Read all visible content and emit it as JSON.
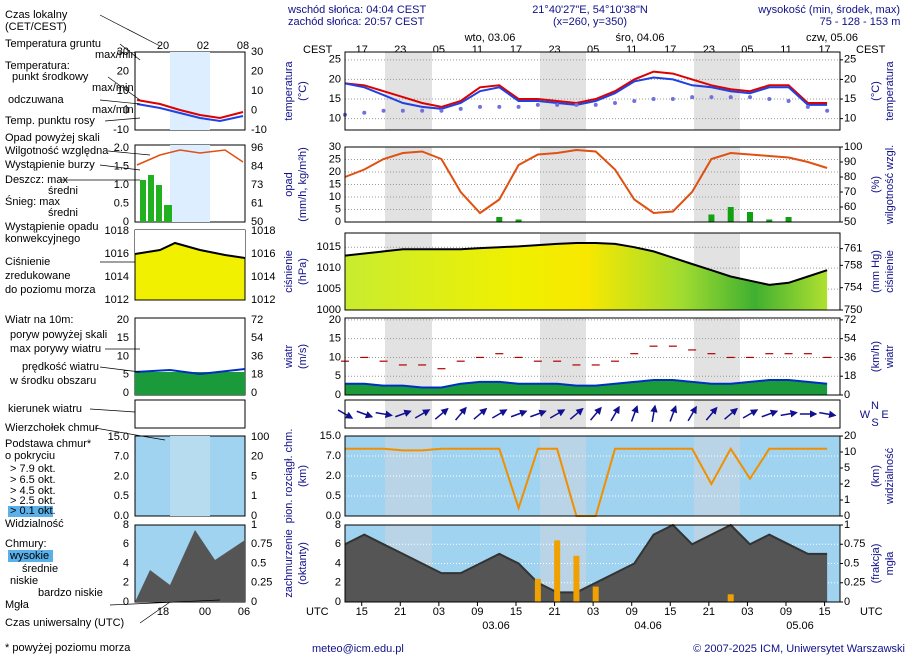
{
  "header": {
    "sunrise": "wschód słońca: 04:04 CEST",
    "sunset": "zachód słońca: 20:57 CEST",
    "coords": "21°40'27\"E, 54°10'38\"N",
    "grid": "(x=260,  y=350)",
    "elevation_title": "wysokość (min, środek, max)",
    "elevation": "75 - 128 - 153 m",
    "cest": "CEST",
    "utc": "UTC",
    "days_top": [
      "wto, 03.06",
      "śro, 04.06",
      "czw, 05.06"
    ],
    "days_bottom": [
      "03.06",
      "04.06",
      "05.06"
    ],
    "email": "meteo@icm.edu.pl",
    "copyright": "© 2007-2025 ICM, Uniwersytet Warszawski"
  },
  "time": {
    "xlim": [
      0,
      77
    ],
    "ticks": [
      {
        "value": 2.6,
        "label": "17"
      },
      {
        "value": 8.6,
        "label": "23"
      },
      {
        "value": 14.6,
        "label": "05"
      },
      {
        "value": 20.6,
        "label": "11"
      },
      {
        "value": 26.6,
        "label": "17"
      },
      {
        "value": 32.6,
        "label": "23"
      },
      {
        "value": 38.6,
        "label": "05"
      },
      {
        "value": 44.6,
        "label": "11"
      },
      {
        "value": 50.6,
        "label": "17"
      },
      {
        "value": 56.6,
        "label": "23"
      },
      {
        "value": 62.6,
        "label": "05"
      },
      {
        "value": 68.6,
        "label": "11"
      },
      {
        "value": 74.6,
        "label": "17"
      }
    ],
    "utc_ticks": [
      {
        "value": 2.6,
        "label": "15"
      },
      {
        "value": 8.6,
        "label": "21"
      },
      {
        "value": 14.6,
        "label": "03"
      },
      {
        "value": 20.6,
        "label": "09"
      },
      {
        "value": 26.6,
        "label": "15"
      },
      {
        "value": 32.6,
        "label": "21"
      },
      {
        "value": 38.6,
        "label": "03"
      },
      {
        "value": 44.6,
        "label": "09"
      },
      {
        "value": 50.6,
        "label": "15"
      },
      {
        "value": 56.6,
        "label": "21"
      },
      {
        "value": 62.6,
        "label": "03"
      },
      {
        "value": 68.6,
        "label": "09"
      },
      {
        "value": 74.6,
        "label": "15"
      }
    ]
  },
  "legend": {
    "local_time": "Czas lokalny",
    "local_zone": "(CET/CEST)",
    "ground_temp": "Temperatura gruntu",
    "ground_maxmin": "max/min",
    "temperature": "Temperatura:",
    "mid_maxmin": "max/min",
    "app_maxmin": "max/min",
    "precip_over": "Opad powyżej skali",
    "storm": "Wystąpienie burzy",
    "rain": "Deszcz: max",
    "snow": "Śnieg: max",
    "snow_mean": "średni",
    "convective": "Wystąpienie opadu",
    "convective2": "konwekcyjnego",
    "pressure2": "zredukowane",
    "pressure3": "do poziomu morza",
    "wind": "Wiatr na 10m:",
    "gust_over": "poryw powyżej skali",
    "wind_center": "w środku obszaru",
    "wind_dir": "kierunek wiatru",
    "cloud_top": "Wierzchołek chmur",
    "cloud_base": "Podstawa chmur*",
    "cover": "o pokryciu",
    "okt": [
      "> 7.9 okt.",
      "> 6.5 okt.",
      "> 4.5 okt.",
      "> 2.5 okt.",
      "> 0.1 okt."
    ],
    "clouds": "Chmury:",
    "high": "wysokie",
    "mid": "średnie",
    "very_low": "bardzo niskie",
    "utc": "Czas uniwersalny (UTC)",
    "footnote": "* powyżej poziomu morza",
    "top_ticks": [
      "20",
      "02",
      "08"
    ],
    "bottom_ticks": [
      18,
      "00",
      "06"
    ],
    "ticks": {
      "temp": [
        30,
        20,
        10,
        0,
        -10
      ],
      "precip": [
        "2.0",
        "1.5",
        "1.0",
        "0.5",
        0
      ],
      "hum": [
        96,
        84,
        73,
        61,
        50
      ],
      "pres": [
        1018,
        1016,
        1014,
        1012
      ],
      "wind": [
        20,
        15,
        10,
        5,
        0
      ],
      "windk": [
        72,
        54,
        36,
        18,
        0
      ],
      "base": [
        "15.0",
        "7.0",
        "2.0",
        "0.5",
        "0.0"
      ],
      "vis": [
        100,
        20,
        5,
        1,
        0
      ],
      "cover": [
        8,
        6,
        4,
        2,
        0
      ],
      "fog": [
        1,
        0.75,
        0.5,
        0.25,
        0
      ]
    }
  },
  "chart_data": [
    {
      "type": "line",
      "ylabel": "temperatura",
      "yunit": "(°C)",
      "y2label": "temperatura",
      "y2unit": "(°C)",
      "ylim": [
        7.1,
        27
      ],
      "yticks": [
        10,
        15,
        20,
        25
      ],
      "y2lim": [
        7.1,
        27
      ],
      "y2ticks": [
        10,
        15,
        20,
        25
      ],
      "grid": true,
      "x": [
        0,
        3,
        6,
        9,
        12,
        15,
        18,
        21,
        24,
        27,
        30,
        33,
        36,
        39,
        42,
        45,
        48,
        51,
        54,
        57,
        60,
        63,
        66,
        69,
        72,
        75
      ],
      "series": [
        {
          "name": "punkt środkowy",
          "color": "#dd0000",
          "kind": "line",
          "values": [
            19,
            18.5,
            17,
            15.5,
            14,
            13,
            14.5,
            18,
            18.5,
            15,
            15,
            14.5,
            14,
            15,
            17,
            20,
            22,
            21.5,
            20,
            18.5,
            17.5,
            17,
            18.5,
            18.5,
            14,
            14
          ]
        },
        {
          "name": "odczuwana",
          "color": "#2040e0",
          "kind": "line",
          "values": [
            19,
            18,
            16,
            14,
            13,
            12.5,
            14,
            17,
            18,
            14.5,
            14.5,
            14,
            13.5,
            14.5,
            16.5,
            19.5,
            20.5,
            20,
            18.5,
            18,
            17,
            16.5,
            18,
            18,
            13.5,
            13.5
          ]
        },
        {
          "name": "Temp. punktu rosy",
          "color": "#7070e0",
          "kind": "dots",
          "values": [
            11,
            11.5,
            12,
            12,
            12,
            12,
            12.5,
            13,
            13,
            13,
            13.5,
            13.5,
            13.5,
            13.5,
            14,
            14.5,
            15,
            15,
            15.5,
            15.5,
            15.5,
            15.5,
            15,
            14.5,
            13,
            12
          ]
        }
      ]
    },
    {
      "type": "bar",
      "ylabel": "opad",
      "yunit": "(mm/h, kg/m²h)",
      "y2label": "wilgotność wzgl.",
      "y2unit": "(%)",
      "ylim": [
        0,
        30
      ],
      "yticks": [
        0,
        5,
        10,
        15,
        20,
        25,
        30
      ],
      "y2lim": [
        50,
        100
      ],
      "y2ticks": [
        50,
        60,
        70,
        80,
        90,
        100
      ],
      "grid": true,
      "x": [
        0,
        3,
        6,
        9,
        12,
        15,
        18,
        21,
        24,
        27,
        30,
        33,
        36,
        39,
        42,
        45,
        48,
        51,
        54,
        57,
        60,
        63,
        66,
        69,
        72,
        75
      ],
      "series": [
        {
          "name": "średni",
          "color": "#10a010",
          "kind": "bar",
          "values": [
            0,
            0,
            0,
            0,
            0,
            0,
            0,
            0,
            2,
            1,
            0,
            0,
            0,
            0,
            0,
            0,
            0,
            0,
            0,
            3,
            6,
            4,
            1,
            2,
            0,
            0
          ]
        },
        {
          "name": "Wilgotność względna",
          "color": "#e05010",
          "kind": "line",
          "axis": "y2",
          "values": [
            80,
            85,
            92,
            96,
            97,
            92,
            70,
            56,
            65,
            88,
            95,
            96,
            98,
            97,
            85,
            65,
            56,
            57,
            70,
            92,
            96,
            95,
            94,
            93,
            90,
            86
          ]
        }
      ]
    },
    {
      "type": "area",
      "ylabel": "ciśnienie",
      "yunit": "(hPa)",
      "y2label": "ciśnienie",
      "y2unit": "(mm Hg)",
      "ylim": [
        1000,
        1018.4
      ],
      "yticks": [
        1000,
        1005,
        1010,
        1015
      ],
      "y2lim": [
        750,
        763.8
      ],
      "y2ticks": [
        750,
        754,
        758,
        761
      ],
      "grid": true,
      "x": [
        0,
        3,
        6,
        9,
        12,
        15,
        18,
        21,
        24,
        27,
        30,
        33,
        36,
        39,
        42,
        45,
        48,
        51,
        54,
        57,
        60,
        63,
        66,
        69,
        72,
        75
      ],
      "series": [
        {
          "name": "Ciśnienie",
          "color": "#000000",
          "kind": "area",
          "fill": "url(#presgrad)",
          "values": [
            1013,
            1013.5,
            1014,
            1014.5,
            1014.5,
            1014.5,
            1014.5,
            1014.8,
            1015,
            1015.2,
            1015.5,
            1015.8,
            1016,
            1016,
            1015.8,
            1015,
            1014,
            1012.5,
            1011,
            1009.5,
            1008,
            1007,
            1006,
            1006.5,
            1008,
            1009.5
          ]
        }
      ]
    },
    {
      "type": "area",
      "ylabel": "wiatr",
      "yunit": "(m/s)",
      "y2label": "wiatr",
      "y2unit": "(km/h)",
      "ylim": [
        0,
        20.5
      ],
      "yticks": [
        0,
        5,
        10,
        15,
        20
      ],
      "y2lim": [
        0,
        73.8
      ],
      "y2ticks": [
        0,
        18,
        36,
        54,
        72
      ],
      "grid": true,
      "x": [
        0,
        3,
        6,
        9,
        12,
        15,
        18,
        21,
        24,
        27,
        30,
        33,
        36,
        39,
        42,
        45,
        48,
        51,
        54,
        57,
        60,
        63,
        66,
        69,
        72,
        75
      ],
      "series": [
        {
          "name": "prędkość wiatru",
          "color": "#0030c0",
          "kind": "area",
          "fill": "#1a9a3a",
          "values": [
            3,
            3,
            2.5,
            2.5,
            2,
            2,
            3,
            3.5,
            3.5,
            3,
            3,
            3,
            2.5,
            2.5,
            3,
            3.5,
            4,
            4,
            3.5,
            3,
            3,
            3.5,
            4,
            4,
            3.5,
            3
          ]
        },
        {
          "name": "max porywy wiatru",
          "color": "#b00000",
          "kind": "dash",
          "values": [
            9,
            10,
            9,
            8,
            8,
            7,
            9,
            10,
            11,
            10,
            9,
            9,
            8,
            8,
            9,
            11,
            13,
            13,
            12,
            11,
            10,
            10,
            11,
            11,
            11,
            10
          ]
        }
      ]
    },
    {
      "type": "arrows",
      "color": "#101090",
      "compass": [
        "W",
        "N",
        "S",
        "E"
      ],
      "x": [
        0,
        3,
        6,
        9,
        12,
        15,
        18,
        21,
        24,
        27,
        30,
        33,
        36,
        39,
        42,
        45,
        48,
        51,
        54,
        57,
        60,
        63,
        66,
        69,
        72,
        75
      ],
      "values": [
        300,
        290,
        280,
        250,
        240,
        230,
        220,
        230,
        240,
        250,
        250,
        240,
        230,
        220,
        210,
        200,
        190,
        200,
        210,
        220,
        230,
        240,
        250,
        260,
        270,
        280
      ]
    },
    {
      "type": "line",
      "scale": "ticks",
      "ylabel": "pion. rozciągł. chm.",
      "yunit": "(km)",
      "y2label": "widzialność",
      "y2unit": "(km)",
      "ylim": [
        0,
        15
      ],
      "yticks": [
        {
          "value": 0,
          "label": "0.0"
        },
        0.5,
        {
          "value": 2,
          "label": "2.0"
        },
        {
          "value": 7,
          "label": "7.0"
        },
        {
          "value": 15,
          "label": "15.0"
        }
      ],
      "y2lim": [
        0,
        20
      ],
      "y2ticks": [
        0,
        1,
        2,
        5,
        10,
        20
      ],
      "grid": true,
      "background": "#9fd3f0",
      "x": [
        0,
        3,
        6,
        9,
        12,
        15,
        18,
        21,
        24,
        27,
        30,
        33,
        36,
        39,
        42,
        45,
        48,
        51,
        54,
        57,
        60,
        63,
        66,
        69,
        72,
        75
      ],
      "series": [
        {
          "name": "Widzialność",
          "color": "#f09000",
          "kind": "line",
          "axis": "y2",
          "values": [
            12,
            12,
            12,
            11,
            11,
            12,
            12,
            12,
            12,
            0.5,
            12,
            12,
            0,
            0,
            12,
            12,
            12,
            12,
            12,
            2,
            12,
            3,
            12,
            12,
            12,
            12
          ]
        }
      ]
    },
    {
      "type": "area",
      "ylabel": "zachmurzenie",
      "yunit": "(oktanty)",
      "y2label": "mgła",
      "y2unit": "(frakcja)",
      "ylim": [
        0,
        8
      ],
      "yticks": [
        0,
        2,
        4,
        6,
        8
      ],
      "y2lim": [
        0,
        1
      ],
      "y2ticks": [
        0,
        0.25,
        0.5,
        0.75,
        1
      ],
      "grid": true,
      "background": "#9fd3f0",
      "x": [
        0,
        3,
        6,
        9,
        12,
        15,
        18,
        21,
        24,
        27,
        30,
        33,
        36,
        39,
        42,
        45,
        48,
        51,
        54,
        57,
        60,
        63,
        66,
        69,
        72,
        75
      ],
      "series": [
        {
          "name": "niskie",
          "color": "#333333",
          "kind": "area",
          "fill": "#555555",
          "values": [
            6,
            7,
            6,
            5,
            4,
            3,
            3,
            4,
            5,
            4,
            2,
            1,
            1,
            2,
            3,
            4,
            7,
            8,
            6,
            7,
            8,
            6,
            7,
            6,
            5,
            5
          ]
        },
        {
          "name": "Mgła",
          "color": "#f0a000",
          "kind": "bar",
          "axis": "y2",
          "values": [
            0,
            0,
            0,
            0,
            0,
            0,
            0,
            0,
            0,
            0,
            0.3,
            0.8,
            0.6,
            0.2,
            0,
            0,
            0,
            0,
            0,
            0,
            0.1,
            0,
            0,
            0,
            0,
            0
          ]
        }
      ]
    }
  ]
}
